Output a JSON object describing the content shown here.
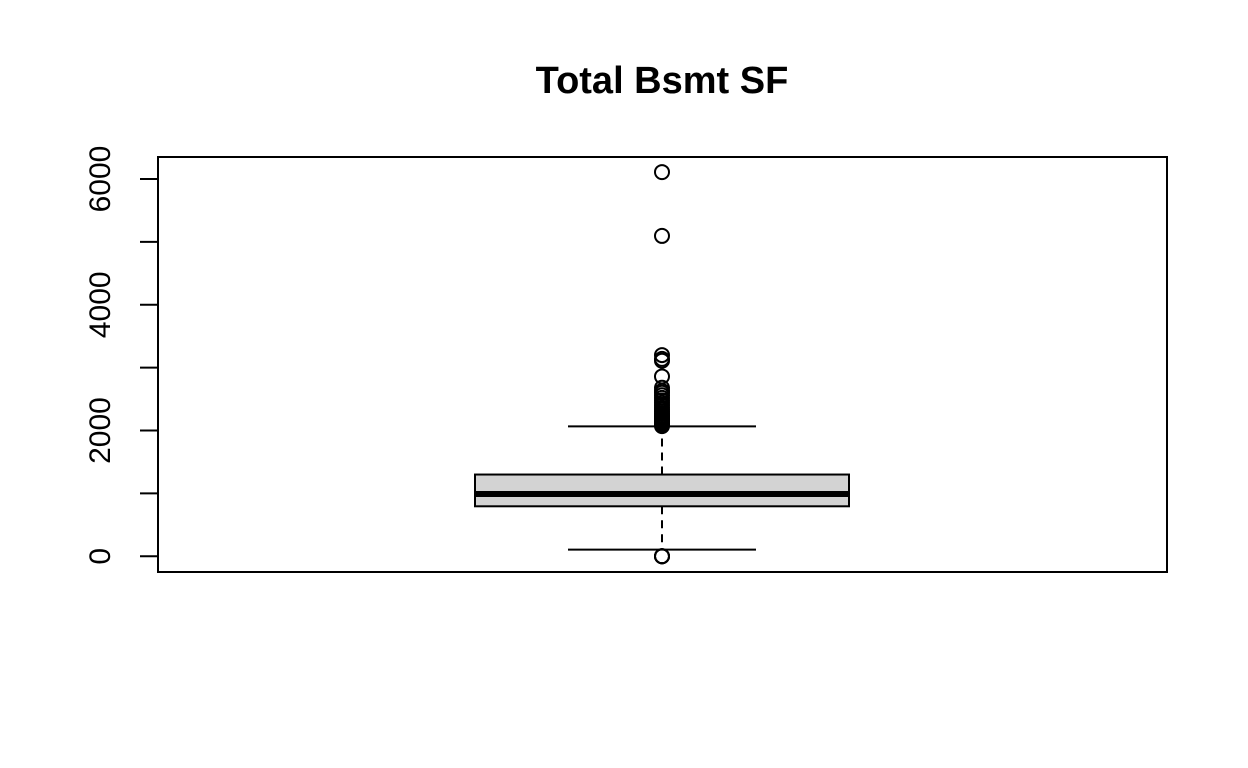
{
  "chart_data": {
    "type": "boxplot",
    "title": "Total Bsmt SF",
    "xlabel": "",
    "ylabel": "",
    "ylim": [
      -250,
      6350
    ],
    "yticks": [
      0,
      1000,
      2000,
      3000,
      4000,
      5000,
      6000
    ],
    "ytick_labels": [
      "0",
      "",
      "2000",
      "",
      "4000",
      "",
      "6000"
    ],
    "box": {
      "lower_whisker": 105,
      "q1": 795,
      "median": 990,
      "q3": 1300,
      "upper_whisker": 2065
    },
    "outliers": [
      0,
      0,
      0,
      0,
      2070,
      2090,
      2110,
      2130,
      2150,
      2170,
      2200,
      2220,
      2240,
      2270,
      2300,
      2330,
      2360,
      2400,
      2440,
      2480,
      2520,
      2560,
      2600,
      2630,
      2680,
      2860,
      3110,
      3140,
      3200,
      5095,
      6110
    ],
    "colors": {
      "box_fill": "#d3d3d3",
      "stroke": "#000000"
    }
  }
}
